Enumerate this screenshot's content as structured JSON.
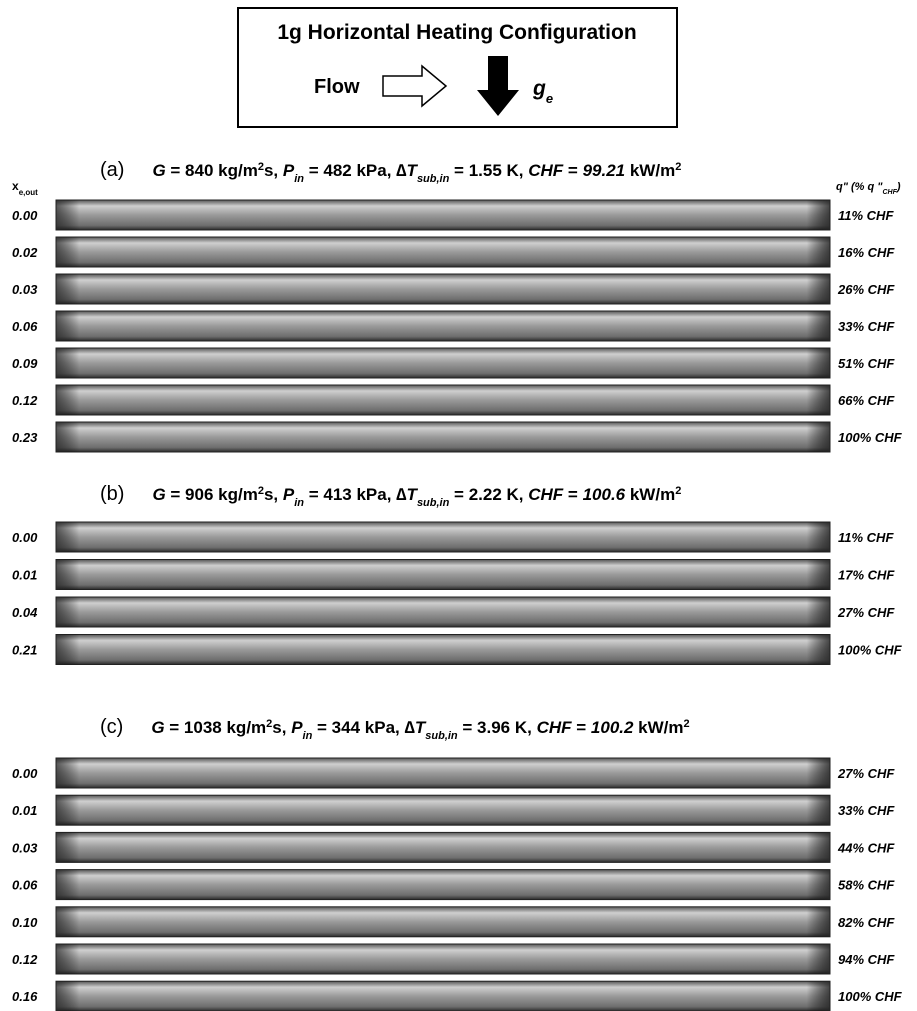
{
  "header": {
    "title": "1g Horizontal Heating Configuration",
    "flow": "Flow",
    "gravity": [
      "g",
      "e"
    ]
  },
  "columns": {
    "x": [
      "x",
      "e,out"
    ],
    "q": [
      "q\" (% q \"",
      "CHF",
      ")"
    ]
  },
  "panels": [
    {
      "header": [
        "(a)",
        "G",
        " = 840 kg/m",
        "2",
        "s,  ",
        "P",
        "in",
        " = 482 kPa,  ∆",
        "T",
        "sub,in",
        " = 1.55 K,  ",
        "CHF",
        " = ",
        "99.21",
        " kW/m",
        "2"
      ],
      "rows": [
        {
          "x": "0.00",
          "q": "11% CHF"
        },
        {
          "x": "0.02",
          "q": "16% CHF"
        },
        {
          "x": "0.03",
          "q": "26% CHF"
        },
        {
          "x": "0.06",
          "q": "33% CHF"
        },
        {
          "x": "0.09",
          "q": "51% CHF"
        },
        {
          "x": "0.12",
          "q": "66% CHF"
        },
        {
          "x": "0.23",
          "q": "100% CHF"
        }
      ]
    },
    {
      "header": [
        "(b)",
        "G",
        " = 906 kg/m",
        "2",
        "s,  ",
        "P",
        "in",
        " = 413 kPa,  ∆",
        "T",
        "sub,in",
        " = 2.22 K,  ",
        "CHF",
        " = ",
        "100.6",
        " kW/m",
        "2"
      ],
      "rows": [
        {
          "x": "0.00",
          "q": "11% CHF"
        },
        {
          "x": "0.01",
          "q": "17% CHF"
        },
        {
          "x": "0.04",
          "q": "27% CHF"
        },
        {
          "x": "0.21",
          "q": "100% CHF"
        }
      ]
    },
    {
      "header": [
        "(c)",
        "G",
        " = 1038 kg/m",
        "2",
        "s,  ",
        "P",
        "in",
        " = 344 kPa,  ∆",
        "T",
        "sub,in",
        " = 3.96 K,  ",
        "CHF",
        " = ",
        "100.2",
        " kW/m",
        "2"
      ],
      "rows": [
        {
          "x": "0.00",
          "q": "27% CHF"
        },
        {
          "x": "0.01",
          "q": "33% CHF"
        },
        {
          "x": "0.03",
          "q": "44% CHF"
        },
        {
          "x": "0.06",
          "q": "58% CHF"
        },
        {
          "x": "0.10",
          "q": "82% CHF"
        },
        {
          "x": "0.12",
          "q": "94% CHF"
        },
        {
          "x": "0.16",
          "q": "100% CHF"
        }
      ]
    }
  ]
}
